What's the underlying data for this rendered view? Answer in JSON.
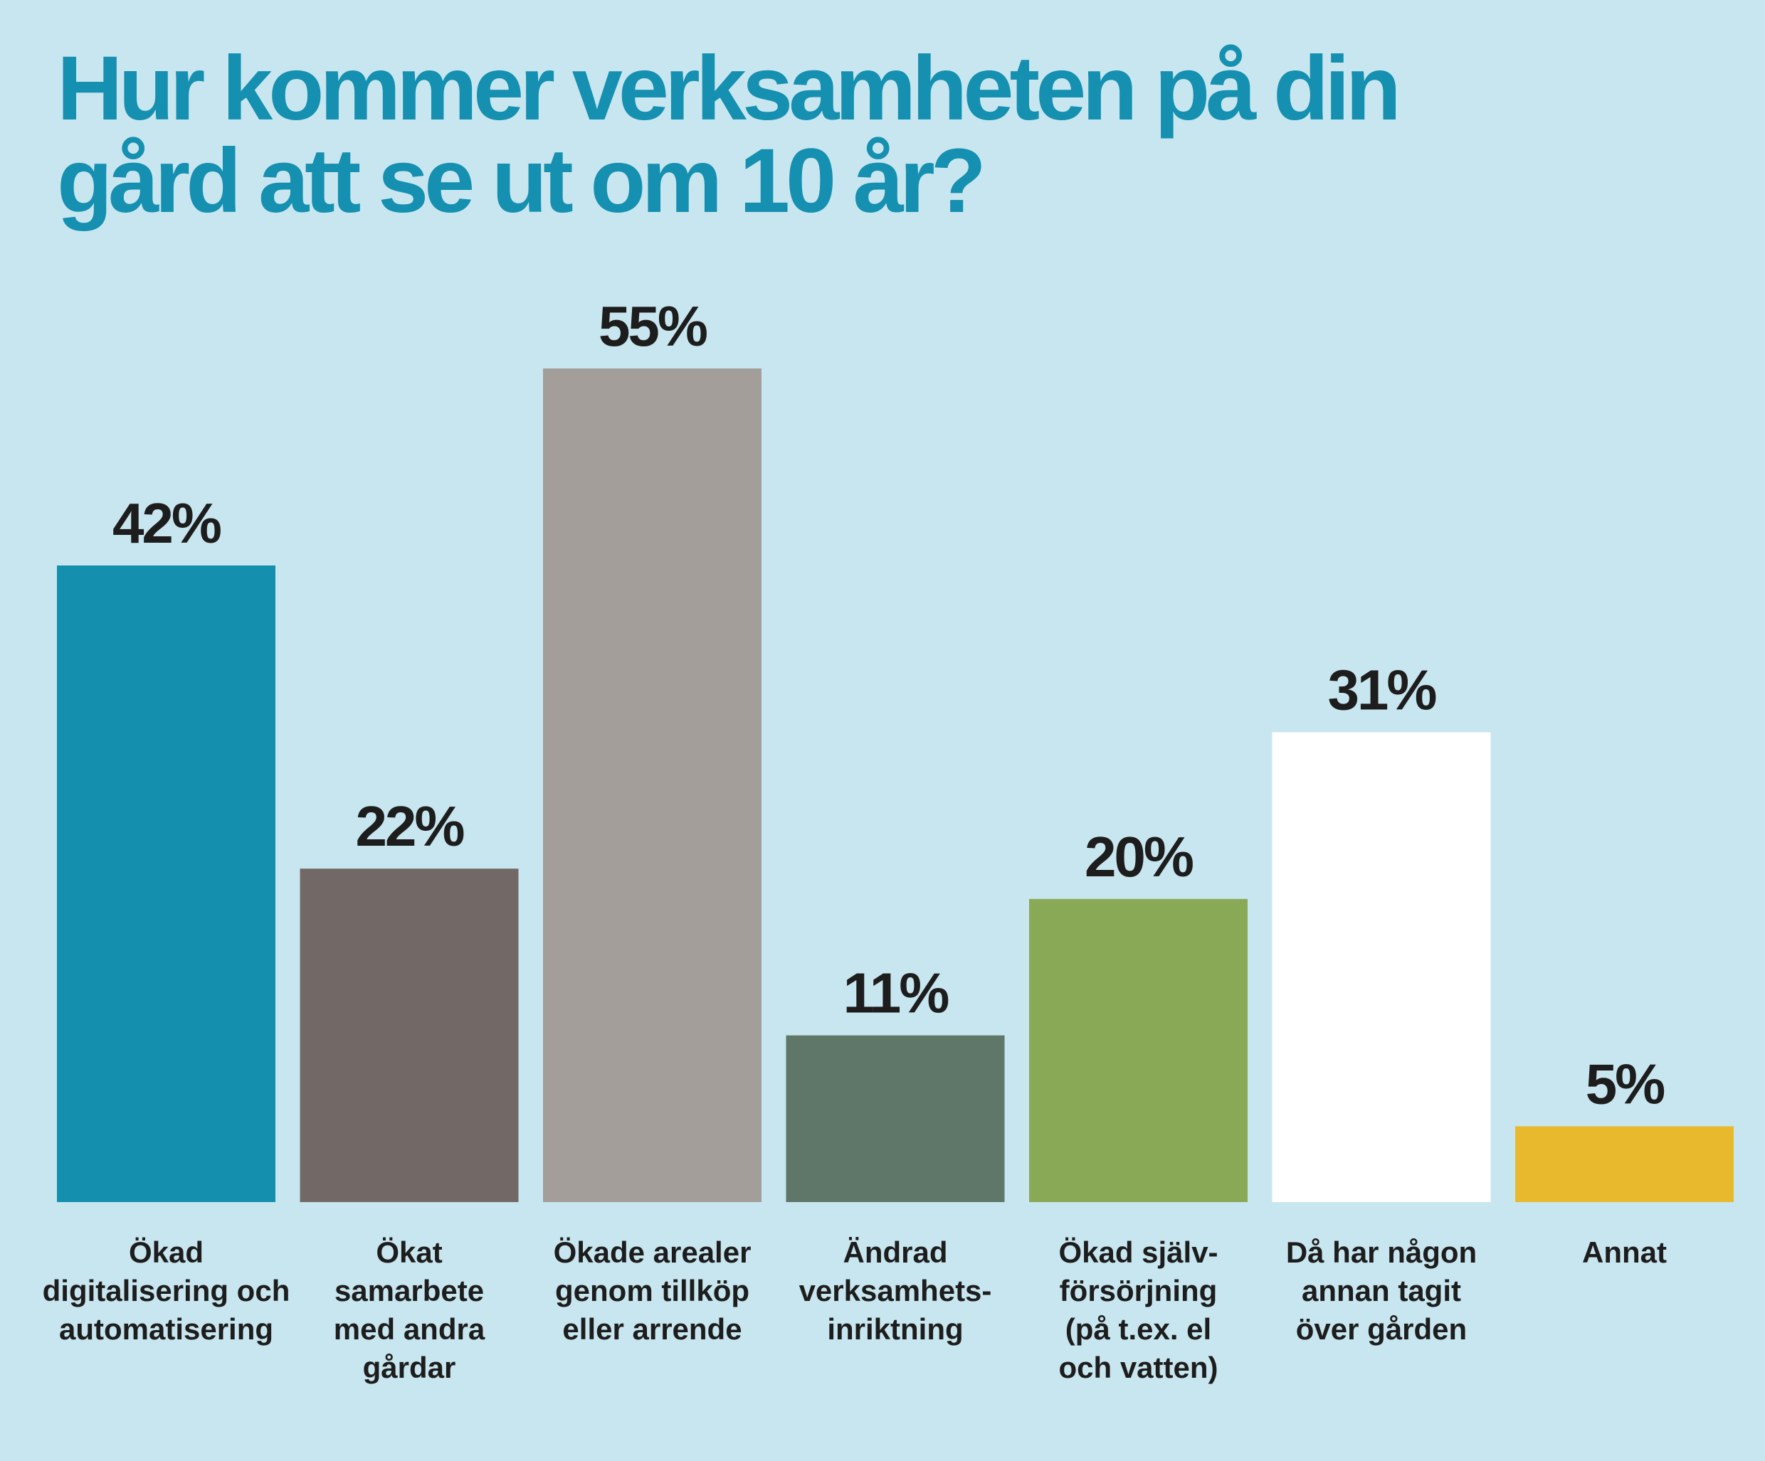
{
  "chart_data": {
    "type": "bar",
    "title_lines": [
      "Hur kommer verksamheten på din",
      "gård att se ut om 10 år?"
    ],
    "categories": [
      [
        "Ökad",
        "digitalisering och",
        "automatisering"
      ],
      [
        "Ökat",
        "samarbete",
        "med andra",
        "gårdar"
      ],
      [
        "Ökade arealer",
        "genom tillköp",
        "eller arrende"
      ],
      [
        "Ändrad",
        "verksamhets-",
        "inriktning"
      ],
      [
        "Ökad själv-",
        "försörjning",
        "(på t.ex. el",
        "och vatten)"
      ],
      [
        "Då har någon",
        "annan tagit",
        "över gården"
      ],
      [
        "Annat"
      ]
    ],
    "values": [
      42,
      22,
      55,
      11,
      20,
      31,
      5
    ],
    "value_labels": [
      "42%",
      "22%",
      "55%",
      "11%",
      "20%",
      "31%",
      "5%"
    ],
    "colors": [
      "#148fae",
      "#726866",
      "#a39e9a",
      "#5f7769",
      "#8aa957",
      "#ffffff",
      "#e9b92d"
    ],
    "ylim": [
      0,
      55
    ],
    "xlabel": "",
    "ylabel": ""
  }
}
